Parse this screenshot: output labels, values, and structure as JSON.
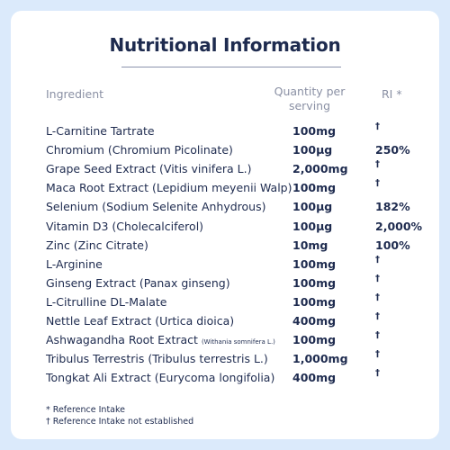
{
  "title": "Nutritional Information",
  "headers": {
    "ingredient": "Ingredient",
    "quantity": "Quantity per serving",
    "ri": "RI *"
  },
  "rows": [
    {
      "ingredient": "L-Carnitine Tartrate",
      "note": "",
      "quantity": "100mg",
      "ri": "†"
    },
    {
      "ingredient": "Chromium (Chromium Picolinate)",
      "note": "",
      "quantity": "100µg",
      "ri": "250%"
    },
    {
      "ingredient": "Grape Seed Extract (Vitis vinifera L.)",
      "note": "",
      "quantity": "2,000mg",
      "ri": "†"
    },
    {
      "ingredient": "Maca Root Extract (Lepidium meyenii Walp)",
      "note": "",
      "quantity": "100mg",
      "ri": "†"
    },
    {
      "ingredient": "Selenium (Sodium Selenite Anhydrous)",
      "note": "",
      "quantity": "100µg",
      "ri": "182%"
    },
    {
      "ingredient": "Vitamin D3 (Cholecalciferol)",
      "note": "",
      "quantity": "100µg",
      "ri": "2,000%"
    },
    {
      "ingredient": "Zinc (Zinc Citrate)",
      "note": "",
      "quantity": "10mg",
      "ri": "100%"
    },
    {
      "ingredient": "L-Arginine",
      "note": "",
      "quantity": "100mg",
      "ri": "†"
    },
    {
      "ingredient": "Ginseng Extract (Panax ginseng)",
      "note": "",
      "quantity": "100mg",
      "ri": "†"
    },
    {
      "ingredient": "L-Citrulline DL-Malate",
      "note": "",
      "quantity": "100mg",
      "ri": "†"
    },
    {
      "ingredient": "Nettle Leaf Extract (Urtica dioica)",
      "note": "",
      "quantity": "400mg",
      "ri": "†"
    },
    {
      "ingredient": "Ashwagandha Root Extract",
      "note": "(Withania somnifera L.)",
      "quantity": "100mg",
      "ri": "†"
    },
    {
      "ingredient": "Tribulus Terrestris (Tribulus terrestris L.)",
      "note": "",
      "quantity": "1,000mg",
      "ri": "†"
    },
    {
      "ingredient": "Tongkat Ali Extract (Eurycoma longifolia)",
      "note": "",
      "quantity": "400mg",
      "ri": "†"
    }
  ],
  "footnotes": {
    "asterisk": "* Reference Intake",
    "dagger": "† Reference Intake not established"
  },
  "colors": {
    "background": "#dbeafb",
    "card": "#ffffff",
    "text": "#1e2b4f",
    "header_text": "#8a90a4"
  }
}
